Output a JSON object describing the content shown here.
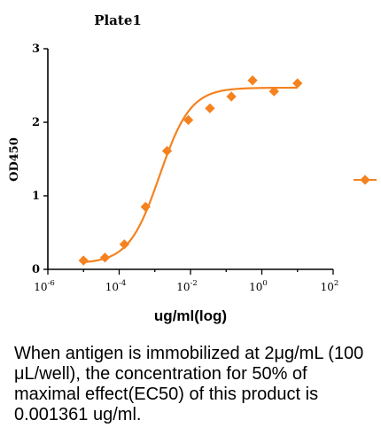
{
  "chart_data": {
    "type": "scatter",
    "title": "Plate1",
    "xlabel": "ug/ml(log)",
    "ylabel": "OD450",
    "x_scale": "log",
    "xlim": [
      1e-06,
      100
    ],
    "ylim": [
      0,
      3
    ],
    "x_ticks": [
      1e-06,
      0.0001,
      0.01,
      1,
      100
    ],
    "x_tick_labels": [
      {
        "base": "10",
        "exp": "-6"
      },
      {
        "base": "10",
        "exp": "-4"
      },
      {
        "base": "10",
        "exp": "-2"
      },
      {
        "base": "10",
        "exp": "0"
      },
      {
        "base": "10",
        "exp": "2"
      }
    ],
    "y_ticks": [
      0,
      1,
      2,
      3
    ],
    "y_tick_labels": [
      "0",
      "1",
      "2",
      "3"
    ],
    "grid": false,
    "legend_placement": "right",
    "color": "#F5821F",
    "series": [
      {
        "x": [
          1e-05,
          4e-05,
          0.00014,
          0.00055,
          0.0022,
          0.0087,
          0.035,
          0.14,
          0.55,
          2.2,
          10
        ],
        "y": [
          0.12,
          0.16,
          0.34,
          0.85,
          1.61,
          2.03,
          2.19,
          2.35,
          2.57,
          2.42,
          2.53
        ]
      }
    ],
    "fit": {
      "model": "four-parameter logistic",
      "bottom": 0.08,
      "top": 2.47,
      "ec50": 0.001361,
      "hill": 1.0
    }
  },
  "caption": "When antigen is immobilized at 2μg/mL (100 μL/well), the concentration for 50% of maximal effect(EC50) of this product is 0.001361 ug/ml."
}
